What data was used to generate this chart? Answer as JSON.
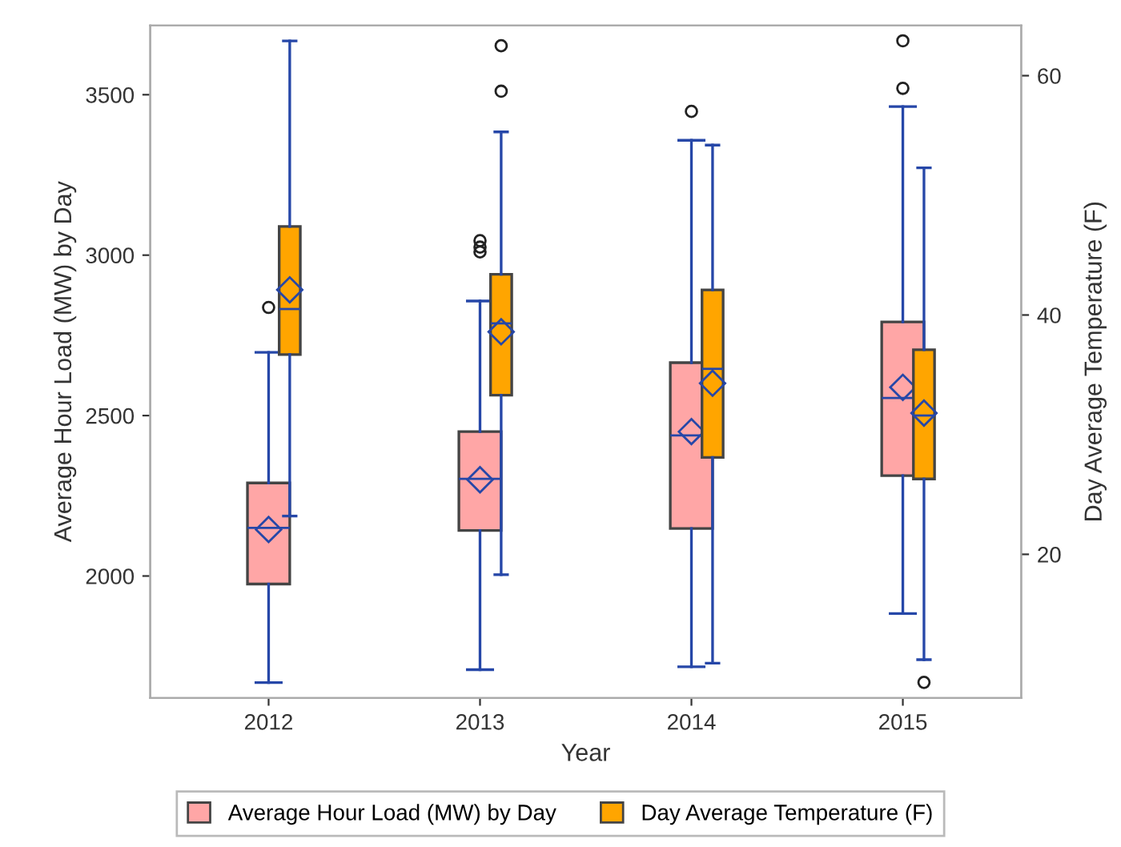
{
  "chart_data": {
    "type": "box",
    "xlabel": "Year",
    "ylabel": "Average Hour Load (MW) by Day",
    "y2label": "Day Average Temperature (F)",
    "categories": [
      "2012",
      "2013",
      "2014",
      "2015"
    ],
    "series": [
      {
        "name": "Average Hour Load (MW) by Day",
        "color": "#ffa6a6",
        "boxes": [
          {
            "low": 1668,
            "q1": 1975,
            "median": 2150,
            "q3": 2290,
            "high": 2697,
            "mean": 2145,
            "outliers": [
              2837
            ]
          },
          {
            "low": 1708,
            "q1": 2142,
            "median": 2303,
            "q3": 2450,
            "high": 2857,
            "mean": 2300,
            "outliers": [
              3045,
              3025,
              3010
            ]
          },
          {
            "low": 1717,
            "q1": 2148,
            "median": 2438,
            "q3": 2665,
            "high": 3358,
            "mean": 2450,
            "outliers": [
              3448
            ]
          },
          {
            "low": 1883,
            "q1": 2313,
            "median": 2555,
            "q3": 2792,
            "high": 3463,
            "mean": 2588,
            "outliers": [
              3520,
              3668
            ]
          }
        ]
      },
      {
        "name": "Day Average Temperature (F)",
        "color": "#ffa500",
        "axis": "y2",
        "boxes": [
          {
            "low": 23.2,
            "q1": 36.7,
            "median": 40.5,
            "q3": 47.4,
            "high": 62.9,
            "mean": 42.1
          },
          {
            "low": 18.3,
            "q1": 33.3,
            "median": 39.3,
            "q3": 43.4,
            "high": 55.3,
            "mean": 38.6,
            "outliers": [
              58.7,
              62.5
            ]
          },
          {
            "low": 10.9,
            "q1": 28.1,
            "median": 35.5,
            "q3": 42.1,
            "high": 54.2,
            "mean": 34.3
          },
          {
            "low": 11.2,
            "q1": 26.3,
            "median": 31.6,
            "q3": 37.1,
            "high": 52.3,
            "mean": 31.8,
            "outliers": [
              9.3
            ]
          }
        ]
      }
    ],
    "ylim": [
      1620,
      3716
    ],
    "yticks": [
      2000,
      2500,
      3000,
      3500
    ],
    "y2lim": [
      8,
      64.2
    ],
    "y2ticks": [
      20,
      40,
      60
    ],
    "marker": "diamond",
    "grid": false,
    "legend": "bottom"
  }
}
